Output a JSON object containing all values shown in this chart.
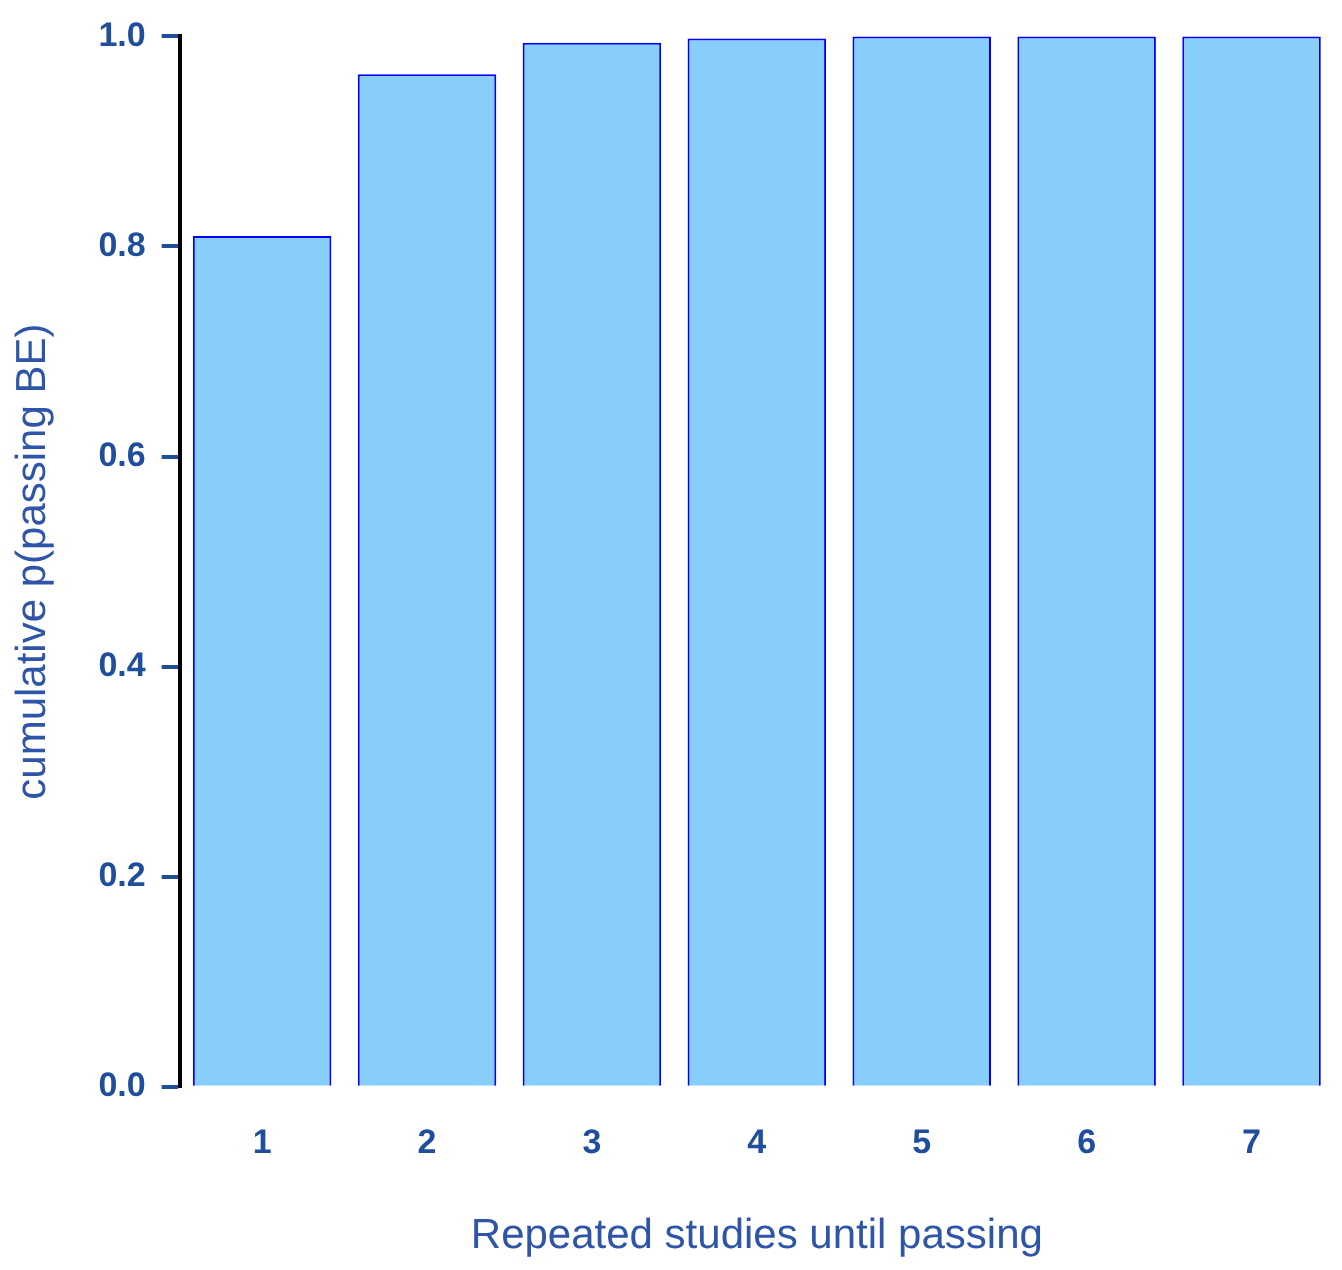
{
  "chart_data": {
    "type": "bar",
    "xlabel": "Repeated studies until passing",
    "ylabel": "cumulative p(passing BE)",
    "categories": [
      "1",
      "2",
      "3",
      "4",
      "5",
      "6",
      "7"
    ],
    "values": [
      0.81,
      0.964,
      0.994,
      0.998,
      1.0,
      1.0,
      1.0
    ],
    "color": "#87cefa",
    "ylim": [
      0,
      1
    ],
    "yticks": [
      {
        "value": 0,
        "label": "0.0"
      },
      {
        "value": 0.2,
        "label": "0.2"
      },
      {
        "value": 0.4,
        "label": "0.4"
      },
      {
        "value": 0.6,
        "label": "0.6"
      },
      {
        "value": 0.8,
        "label": "0.8"
      },
      {
        "value": 1,
        "label": "1.0"
      }
    ],
    "grid": false,
    "legend": false
  }
}
